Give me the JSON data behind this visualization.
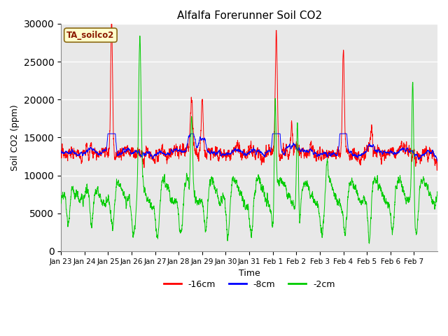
{
  "title": "Alfalfa Forerunner Soil CO2",
  "ylabel": "Soil CO2 (ppm)",
  "xlabel": "Time",
  "sensor_label": "TA_soilco2",
  "ylim": [
    0,
    30000
  ],
  "yticks": [
    0,
    5000,
    10000,
    15000,
    20000,
    25000,
    30000
  ],
  "legend_labels": [
    "-16cm",
    "-8cm",
    "-2cm"
  ],
  "line_colors": [
    "#ff0000",
    "#0000ff",
    "#00cc00"
  ],
  "bg_color": "#e8e8e8",
  "tick_labels": [
    "Jan 23",
    "Jan 24",
    "Jan 25",
    "Jan 26",
    "Jan 27",
    "Jan 28",
    "Jan 29",
    "Jan 30",
    "Jan 31",
    "Feb 1",
    "Feb 2",
    "Feb 3",
    "Feb 4",
    "Feb 5",
    "Feb 6",
    "Feb 7"
  ],
  "n_points": 4800,
  "seed": 12345
}
